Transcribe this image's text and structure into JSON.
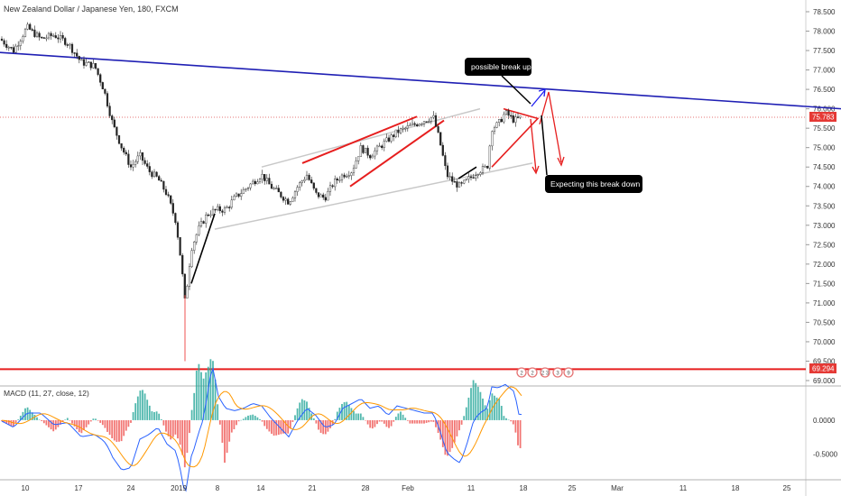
{
  "header": {
    "title": "New Zealand Dollar / Japanese Yen, 180, FXCM"
  },
  "colors": {
    "up": "#26a69a",
    "down": "#ef5350",
    "candle": "#222222",
    "trend_blue": "#1f1fb4",
    "red": "#e61e1e",
    "channel": "#c8c8c8",
    "macd": "#2962ff",
    "signal": "#ff9800",
    "hist_up": "#26a69a",
    "hist_down": "#ef5350"
  },
  "annotations": {
    "possible_break_up": "possible break up",
    "expecting_break_down": "Expecting this break down"
  },
  "price_axis": {
    "ticks": [
      "78.500",
      "78.000",
      "77.500",
      "77.000",
      "76.500",
      "76.000",
      "75.500",
      "75.000",
      "74.500",
      "74.000",
      "73.500",
      "73.000",
      "72.500",
      "72.000",
      "71.500",
      "71.000",
      "70.500",
      "70.000",
      "69.500",
      "69.000"
    ],
    "current_price": "75.783",
    "low_level": "69.294"
  },
  "macd": {
    "label": "MACD (11, 27, close, 12)",
    "ticks": [
      "0.0000",
      "-0.5000"
    ]
  },
  "x_axis": {
    "labels": [
      "10",
      "17",
      "24",
      "2019",
      "8",
      "14",
      "21",
      "28",
      "Feb",
      "11",
      "18",
      "25",
      "Mar",
      "11",
      "18",
      "25"
    ]
  },
  "event_markers": [
    "2",
    "2",
    "2 3",
    "3",
    "9"
  ],
  "chart_data": {
    "type": "candlestick",
    "title": "New Zealand Dollar / Japanese Yen, 180, FXCM",
    "ylim": [
      68.9,
      78.7
    ],
    "close_path": [
      [
        0,
        77.8
      ],
      [
        15,
        77.5
      ],
      [
        30,
        78.1
      ],
      [
        45,
        77.8
      ],
      [
        60,
        77.9
      ],
      [
        75,
        77.7
      ],
      [
        90,
        77.2
      ],
      [
        105,
        77.1
      ],
      [
        115,
        76.5
      ],
      [
        125,
        75.6
      ],
      [
        135,
        75.0
      ],
      [
        145,
        74.5
      ],
      [
        155,
        74.8
      ],
      [
        165,
        74.4
      ],
      [
        175,
        74.2
      ],
      [
        185,
        73.8
      ],
      [
        195,
        73.1
      ],
      [
        201,
        72.0
      ],
      [
        205,
        71.0
      ],
      [
        212,
        72.4
      ],
      [
        220,
        72.9
      ],
      [
        230,
        73.3
      ],
      [
        240,
        73.4
      ],
      [
        250,
        73.4
      ],
      [
        260,
        73.7
      ],
      [
        270,
        73.9
      ],
      [
        280,
        74.1
      ],
      [
        290,
        74.3
      ],
      [
        300,
        74.0
      ],
      [
        310,
        73.8
      ],
      [
        320,
        73.6
      ],
      [
        330,
        74.0
      ],
      [
        340,
        74.3
      ],
      [
        350,
        73.8
      ],
      [
        360,
        73.7
      ],
      [
        370,
        74.1
      ],
      [
        380,
        74.3
      ],
      [
        390,
        74.4
      ],
      [
        400,
        75.0
      ],
      [
        410,
        74.8
      ],
      [
        420,
        75.0
      ],
      [
        430,
        75.2
      ],
      [
        440,
        75.4
      ],
      [
        450,
        75.5
      ],
      [
        460,
        75.6
      ],
      [
        470,
        75.7
      ],
      [
        480,
        75.8
      ],
      [
        487,
        75.2
      ],
      [
        495,
        74.3
      ],
      [
        503,
        74.1
      ],
      [
        510,
        74.0
      ],
      [
        520,
        74.2
      ],
      [
        530,
        74.4
      ],
      [
        540,
        74.5
      ],
      [
        545,
        75.5
      ],
      [
        552,
        75.6
      ],
      [
        560,
        75.9
      ],
      [
        570,
        75.7
      ],
      [
        578,
        75.783
      ]
    ],
    "trendlines": {
      "blue_resistance": [
        [
          0,
          77.45
        ],
        [
          932,
          76.0
        ]
      ],
      "channel_upper": [
        [
          290,
          74.5
        ],
        [
          532,
          76.0
        ]
      ],
      "channel_lower": [
        [
          238,
          72.9
        ],
        [
          590,
          74.6
        ]
      ],
      "red_wedge_upper_left": [
        [
          335,
          74.6
        ],
        [
          462,
          75.8
        ]
      ],
      "red_wedge_lower_left": [
        [
          388,
          74.0
        ],
        [
          492,
          75.7
        ]
      ]
    },
    "levels": [
      75.783,
      69.294
    ],
    "ylabel": "",
    "xlabel": ""
  }
}
